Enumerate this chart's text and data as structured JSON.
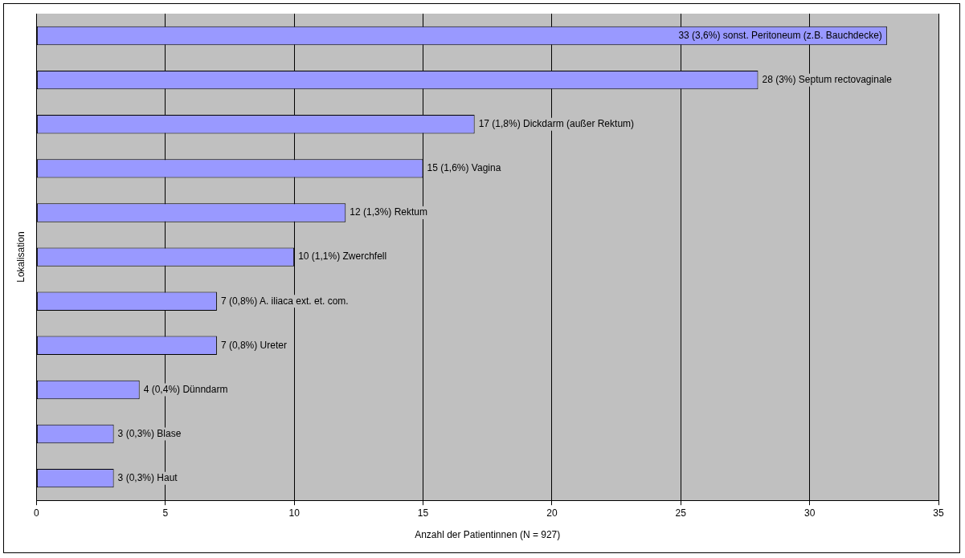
{
  "chart_data": {
    "type": "bar",
    "orientation": "horizontal",
    "xlabel": "Anzahl der Patientinnen (N = 927)",
    "ylabel": "Lokalisation",
    "categories": [
      null,
      null,
      null,
      null,
      null,
      null,
      null,
      null,
      null,
      null,
      null
    ],
    "values": [
      33,
      28,
      17,
      15,
      12,
      10,
      7,
      7,
      4,
      3,
      3
    ],
    "value_labels": [
      "33 (3,6%) sonst. Peritoneum (z.B. Bauchdecke)",
      "28 (3%) Septum rectovaginale",
      "17 (1,8%) Dickdarm (außer Rektum)",
      "15 (1,6%) Vagina",
      "12 (1,3%) Rektum",
      "10 (1,1%) Zwerchfell",
      "7 (0,8%) A. iliaca ext. et. com.",
      "7 (0,8%) Ureter",
      "4 (0,4%) Dünndarm",
      "3 (0,3%) Blase",
      "3 (0,3%) Haut"
    ],
    "color": "#9999ff",
    "xlim": [
      0,
      35
    ],
    "xticks": [
      0,
      5,
      10,
      15,
      20,
      25,
      30,
      35
    ],
    "grid": "x",
    "tick_labels": "x"
  }
}
